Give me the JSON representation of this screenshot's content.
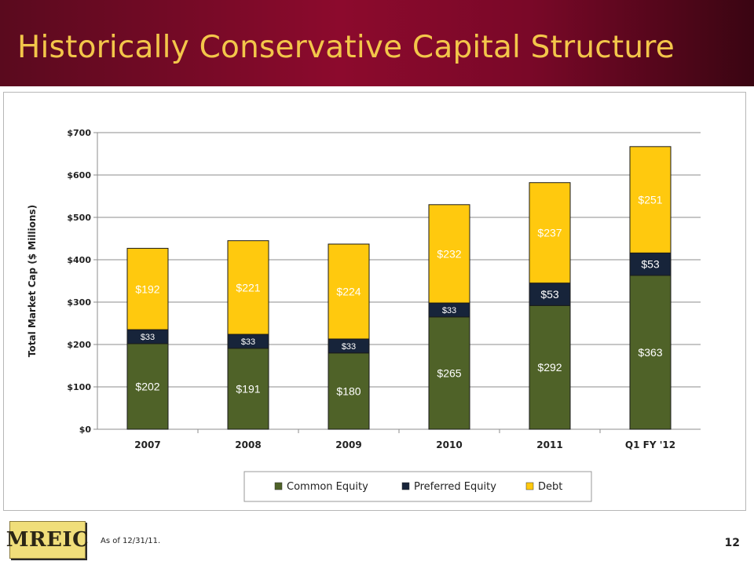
{
  "slide": {
    "title": "Historically Conservative Capital Structure",
    "footnote": "As of 12/31/11.",
    "page_number": "12",
    "logo_text": "MREIC"
  },
  "colors": {
    "header_dark": "#5a0a1e",
    "header_mid": "#8c0a2d",
    "title_gold": "#f3c64a",
    "common_equity": "#4f6228",
    "preferred_equity": "#17243a",
    "debt": "#ffc90e"
  },
  "chart_data": {
    "type": "bar",
    "stacked": true,
    "title": "",
    "ylabel": "Total Market Cap ($ Millions)",
    "xlabel": "",
    "categories": [
      "2007",
      "2008",
      "2009",
      "2010",
      "2011",
      "Q1 FY '12"
    ],
    "ylim": [
      0,
      700
    ],
    "yticks": [
      0,
      100,
      200,
      300,
      400,
      500,
      600,
      700
    ],
    "ytick_labels": [
      "$0",
      "$100",
      "$200",
      "$300",
      "$400",
      "$500",
      "$600",
      "$700"
    ],
    "grid": true,
    "legend_position": "bottom",
    "series": [
      {
        "name": "Common Equity",
        "color": "#4f6228",
        "label_color": "#ffffff",
        "values": [
          202,
          191,
          180,
          265,
          292,
          363
        ],
        "labels": [
          "$202",
          "$191",
          "$180",
          "$265",
          "$292",
          "$363"
        ]
      },
      {
        "name": "Preferred Equity",
        "color": "#17243a",
        "label_color": "#ffffff",
        "values": [
          33,
          33,
          33,
          33,
          53,
          53
        ],
        "labels": [
          "$33",
          "$33",
          "$33",
          "$33",
          "$53",
          "$53"
        ]
      },
      {
        "name": "Debt",
        "color": "#ffc90e",
        "label_color": "#ffffff",
        "values": [
          192,
          221,
          224,
          232,
          237,
          251
        ],
        "labels": [
          "$192",
          "$221",
          "$224",
          "$232",
          "$237",
          "$251"
        ]
      }
    ]
  }
}
